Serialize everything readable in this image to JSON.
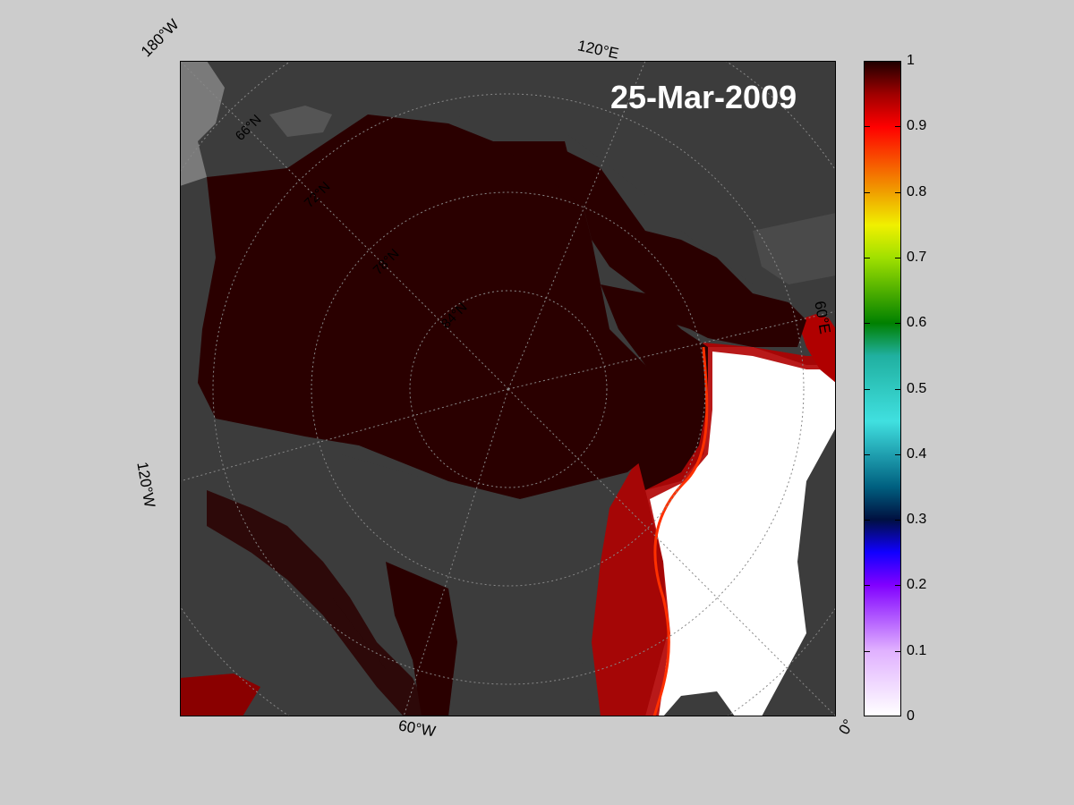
{
  "map": {
    "date_label": "25-Mar-2009",
    "edge_labels": {
      "top_left": "180°W",
      "top": "120°E",
      "right": "60°E",
      "left": "120°W",
      "bottom": "60°W",
      "bottom_right": "0°"
    },
    "lat_labels": [
      "66°N",
      "72°N",
      "78°N",
      "84°N"
    ],
    "colors": {
      "ice_full": "#2a0000",
      "land": "#3c3c3c",
      "land_light": "#7a7a7a",
      "open_water": "#ffffff",
      "background": "#cccccc"
    }
  },
  "colorbar": {
    "ticks": [
      "0",
      "0.1",
      "0.2",
      "0.3",
      "0.4",
      "0.5",
      "0.6",
      "0.7",
      "0.8",
      "0.9",
      "1"
    ],
    "stops": [
      {
        "v": 0.0,
        "c": "#ffffff"
      },
      {
        "v": 0.1,
        "c": "#e0b0ff"
      },
      {
        "v": 0.2,
        "c": "#8000ff"
      },
      {
        "v": 0.25,
        "c": "#1000ff"
      },
      {
        "v": 0.3,
        "c": "#001040"
      },
      {
        "v": 0.35,
        "c": "#006080"
      },
      {
        "v": 0.45,
        "c": "#40e0e0"
      },
      {
        "v": 0.55,
        "c": "#20b0a0"
      },
      {
        "v": 0.6,
        "c": "#008000"
      },
      {
        "v": 0.7,
        "c": "#a0e000"
      },
      {
        "v": 0.75,
        "c": "#f0f000"
      },
      {
        "v": 0.8,
        "c": "#f0a000"
      },
      {
        "v": 0.9,
        "c": "#ff0000"
      },
      {
        "v": 0.95,
        "c": "#a00000"
      },
      {
        "v": 1.0,
        "c": "#200000"
      }
    ]
  }
}
